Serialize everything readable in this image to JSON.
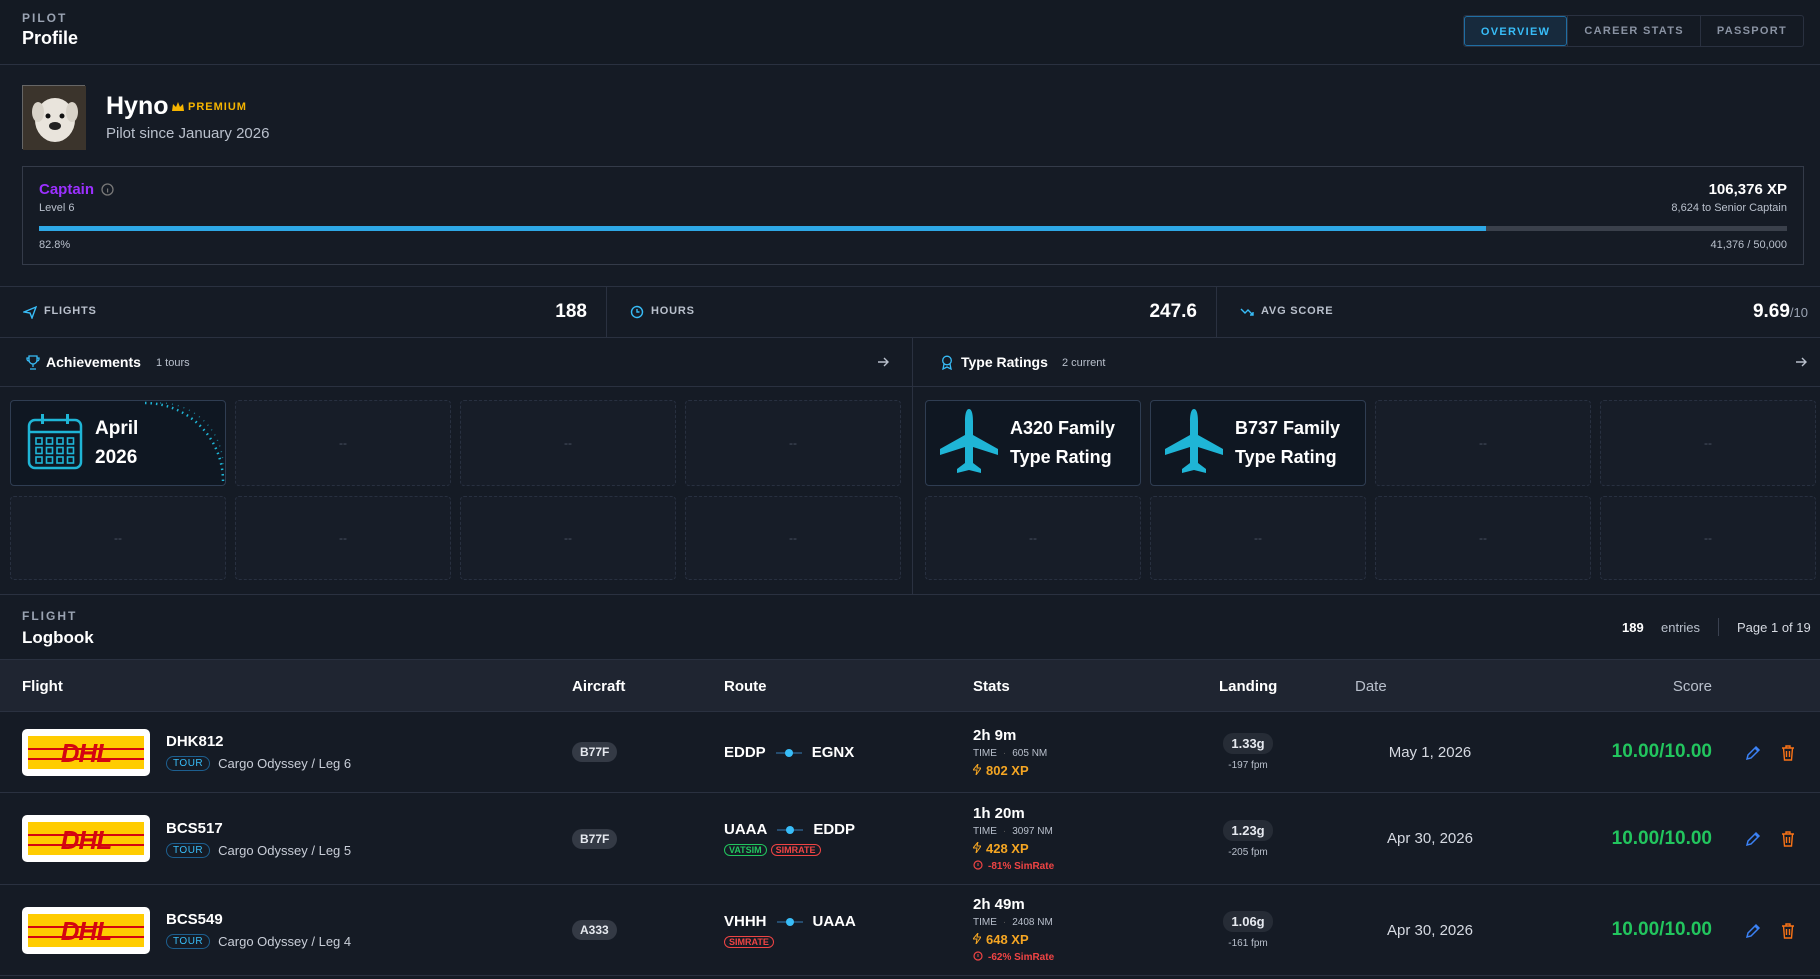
{
  "header": {
    "eyebrow": "PILOT",
    "title": "Profile",
    "tabs": [
      "OVERVIEW",
      "CAREER STATS",
      "PASSPORT"
    ]
  },
  "profile": {
    "name": "Hyno",
    "badge": "PREMIUM",
    "since": "Pilot since January 2026",
    "rank": "Captain",
    "level": "Level 6",
    "xp": "106,376 XP",
    "next": "8,624 to Senior Captain",
    "progress": {
      "value": 82.8,
      "label": "82.8%"
    },
    "progress_count": "41,376 / 50,000"
  },
  "stats": [
    {
      "label": "FLIGHTS",
      "value": "188"
    },
    {
      "label": "HOURS",
      "value": "247.6"
    },
    {
      "label": "AVG SCORE",
      "value": "9.69",
      "suffix": "/10"
    }
  ],
  "achievements": {
    "title": "Achievements",
    "count": "1 tours",
    "tiles": [
      {
        "line1": "April",
        "line2": "2026"
      }
    ],
    "placeholder": "--"
  },
  "type_ratings": {
    "title": "Type Ratings",
    "count": "2 current",
    "tiles": [
      {
        "line1": "A320 Family",
        "line2": "Type Rating"
      },
      {
        "line1": "B737 Family",
        "line2": "Type Rating"
      }
    ],
    "placeholder": "--"
  },
  "logbook": {
    "eyebrow": "FLIGHT",
    "title": "Logbook",
    "entries": "189",
    "entries_label": "entries",
    "page": "Page 1 of 19",
    "columns": [
      "Flight",
      "Aircraft",
      "Route",
      "Stats",
      "Landing",
      "Date",
      "Score"
    ],
    "rows": [
      {
        "logo": "DHL",
        "flight": "DHK812",
        "tag": "TOUR",
        "leg": "Cargo Odyssey / Leg 6",
        "aircraft": "B77F",
        "from": "EDDP",
        "to": "EGNX",
        "duration": "2h 9m",
        "time_label": "TIME",
        "distance": "605 NM",
        "xp": "802 XP",
        "g": "1.33g",
        "fpm": "-197 fpm",
        "date": "May 1, 2026",
        "score": "10.00/10.00"
      },
      {
        "logo": "DHL",
        "flight": "BCS517",
        "tag": "TOUR",
        "leg": "Cargo Odyssey / Leg 5",
        "aircraft": "B77F",
        "from": "UAAA",
        "to": "EDDP",
        "badges": [
          {
            "text": "VATSIM",
            "color": "#22c55e"
          },
          {
            "text": "SIMRATE",
            "color": "#ef4444"
          }
        ],
        "duration": "1h 20m",
        "time_label": "TIME",
        "distance": "3097 NM",
        "xp": "428 XP",
        "penalty": "-81% SimRate",
        "g": "1.23g",
        "fpm": "-205 fpm",
        "date": "Apr 30, 2026",
        "score": "10.00/10.00"
      },
      {
        "logo": "DHL",
        "flight": "BCS549",
        "tag": "TOUR",
        "leg": "Cargo Odyssey / Leg 4",
        "aircraft": "A333",
        "from": "VHHH",
        "to": "UAAA",
        "badges": [
          {
            "text": "SIMRATE",
            "color": "#ef4444"
          }
        ],
        "duration": "2h 49m",
        "time_label": "TIME",
        "distance": "2408 NM",
        "xp": "648 XP",
        "penalty": "-62% SimRate",
        "g": "1.06g",
        "fpm": "-161 fpm",
        "date": "Apr 30, 2026",
        "score": "10.00/10.00"
      }
    ]
  }
}
